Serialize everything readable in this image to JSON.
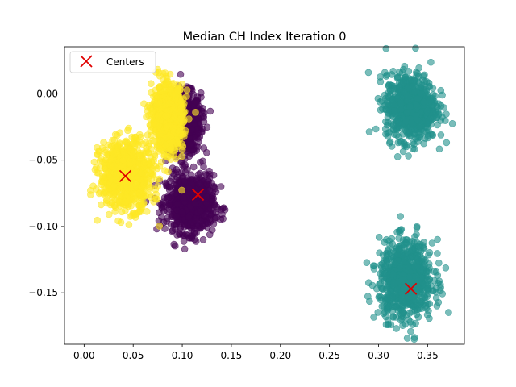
{
  "chart_data": {
    "type": "scatter",
    "title": "Median CH Index Iteration 0",
    "xlabel": "",
    "ylabel": "",
    "xlim": [
      -0.02,
      0.3875
    ],
    "ylim": [
      -0.1888,
      0.0355
    ],
    "xticks": [
      0.0,
      0.05,
      0.1,
      0.15,
      0.2,
      0.25,
      0.3,
      0.35
    ],
    "xtick_labels": [
      "0.00",
      "0.05",
      "0.10",
      "0.15",
      "0.20",
      "0.25",
      "0.30",
      "0.35"
    ],
    "yticks": [
      0.0,
      -0.05,
      -0.1,
      -0.15
    ],
    "ytick_labels": [
      "0.00",
      "−0.05",
      "−0.10",
      "−0.15"
    ],
    "grid": false,
    "legend": {
      "position": "top-left",
      "entries": [
        "Centers"
      ]
    },
    "clusters": [
      {
        "color": "#440154",
        "center": [
          0.102,
          -0.022
        ],
        "spread": [
          0.021,
          0.028
        ]
      },
      {
        "color": "#440154",
        "center": [
          0.108,
          -0.083
        ],
        "spread": [
          0.03,
          0.027
        ]
      },
      {
        "color": "#21918c",
        "center": [
          0.333,
          -0.01
        ],
        "spread": [
          0.032,
          0.031
        ]
      },
      {
        "color": "#21918c",
        "center": [
          0.328,
          -0.14
        ],
        "spread": [
          0.034,
          0.036
        ]
      },
      {
        "color": "#fde725",
        "center": [
          0.043,
          -0.061
        ],
        "spread": [
          0.033,
          0.032
        ]
      },
      {
        "color": "#fde725",
        "center": [
          0.085,
          -0.018
        ],
        "spread": [
          0.02,
          0.03
        ]
      }
    ],
    "series": [
      {
        "name": "Centers",
        "marker": "x",
        "color": "#e00000",
        "points": [
          {
            "x": 0.042,
            "y": -0.062
          },
          {
            "x": 0.116,
            "y": -0.076
          },
          {
            "x": 0.333,
            "y": -0.147
          }
        ]
      }
    ]
  }
}
